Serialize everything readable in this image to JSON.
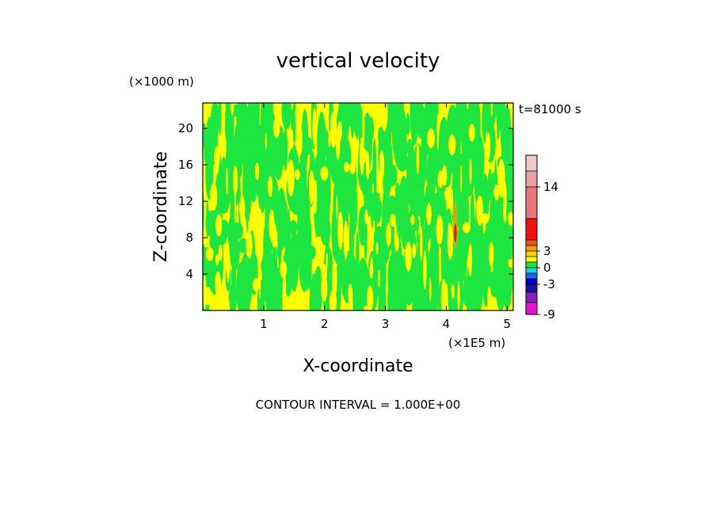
{
  "chart_data": {
    "type": "heatmap",
    "title": "vertical velocity",
    "xlabel": "X-coordinate",
    "ylabel": "Z-coordinate",
    "x_unit": "(×1E5 m)",
    "y_unit": "(×1000 m)",
    "time_label": "t=81000 s",
    "footer": "CONTOUR INTERVAL = 1.000E+00",
    "xlim": [
      0,
      5.1
    ],
    "ylim": [
      0,
      22.8
    ],
    "x_ticks": [
      1,
      2,
      3,
      4,
      5
    ],
    "y_ticks": [
      4,
      8,
      12,
      16,
      20
    ],
    "contour_interval": 1.0,
    "colorbar": {
      "labels": [
        {
          "text": "14",
          "value": 14
        },
        {
          "text": "3",
          "value": 3
        },
        {
          "text": "0",
          "value": 0
        },
        {
          "text": "-3",
          "value": -3
        },
        {
          "text": "-9",
          "value": -9
        }
      ],
      "bands": [
        {
          "color": "#f0c8c8",
          "from": 18,
          "to": 22
        },
        {
          "color": "#e8a4a4",
          "from": 14,
          "to": 18
        },
        {
          "color": "#e67878",
          "from": 10,
          "to": 14
        },
        {
          "color": "#ee1111",
          "from": 6,
          "to": 10
        },
        {
          "color": "#e85a1e",
          "from": 4,
          "to": 6
        },
        {
          "color": "#f0a000",
          "from": 3,
          "to": 4
        },
        {
          "color": "#f7d400",
          "from": 2,
          "to": 3
        },
        {
          "color": "#ffff00",
          "from": 1,
          "to": 2
        },
        {
          "color": "#1ee640",
          "from": 0,
          "to": 1
        },
        {
          "color": "#22d2d2",
          "from": -1,
          "to": 0
        },
        {
          "color": "#1e64ff",
          "from": -2,
          "to": -1
        },
        {
          "color": "#0000c8",
          "from": -3,
          "to": -2
        },
        {
          "color": "#1414a0",
          "from": -5,
          "to": -3
        },
        {
          "color": "#8c1eb4",
          "from": -7,
          "to": -5
        },
        {
          "color": "#e614c8",
          "from": -9,
          "to": -7
        }
      ]
    },
    "field": {
      "dominant_colors": [
        "#ffff00",
        "#1ee640"
      ],
      "updraft_x": 4.15,
      "updraft_z": 8.5,
      "updraft_color": "#ee1111"
    }
  }
}
